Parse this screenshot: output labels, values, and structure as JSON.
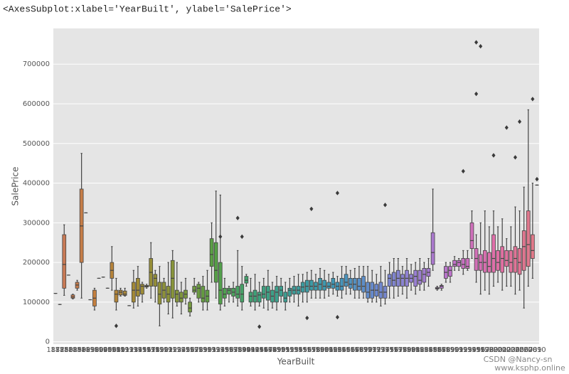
{
  "header": {
    "output": "<AxesSubplot:xlabel='YearBuilt', ylabel='SalePrice'>"
  },
  "watermark": {
    "line1": "CSDN @Nancy-sn",
    "line2": "www.ksphp.online"
  },
  "chart_data": {
    "type": "box",
    "xlabel": "YearBuilt",
    "ylabel": "SalePrice",
    "categories": [
      "1872",
      "1875",
      "1880",
      "1882",
      "1885",
      "1890",
      "1892",
      "1893",
      "1898",
      "1900",
      "1904",
      "1905",
      "1906",
      "1908",
      "1910",
      "1911",
      "1912",
      "1913",
      "1914",
      "1915",
      "1916",
      "1917",
      "1918",
      "1919",
      "1920",
      "1921",
      "1922",
      "1923",
      "1924",
      "1925",
      "1926",
      "1927",
      "1928",
      "1929",
      "1930",
      "1931",
      "1932",
      "1934",
      "1935",
      "1936",
      "1937",
      "1938",
      "1939",
      "1940",
      "1941",
      "1942",
      "1945",
      "1946",
      "1947",
      "1948",
      "1949",
      "1950",
      "1951",
      "1952",
      "1953",
      "1954",
      "1955",
      "1956",
      "1957",
      "1958",
      "1959",
      "1960",
      "1961",
      "1962",
      "1963",
      "1964",
      "1965",
      "1966",
      "1967",
      "1968",
      "1969",
      "1970",
      "1971",
      "1972",
      "1973",
      "1974",
      "1975",
      "1976",
      "1977",
      "1978",
      "1979",
      "1980",
      "1981",
      "1982",
      "1983",
      "1984",
      "1985",
      "1986",
      "1987",
      "1988",
      "1989",
      "1990",
      "1991",
      "1992",
      "1993",
      "1994",
      "1995",
      "1996",
      "1997",
      "1998",
      "1999",
      "2000",
      "2001",
      "2002",
      "2003",
      "2004",
      "2005",
      "2006",
      "2007",
      "2008",
      "2009",
      "2010"
    ],
    "boxes": [
      [
        122000,
        122000,
        122000,
        122000,
        122000
      ],
      [
        94000,
        94000,
        94000,
        94000,
        94000
      ],
      [
        117000,
        135000,
        195000,
        270000,
        295000
      ],
      [
        168000,
        168000,
        168000,
        168000,
        168000
      ],
      [
        108000,
        110000,
        113000,
        118000,
        120000
      ],
      [
        130000,
        135000,
        143000,
        150000,
        155000
      ],
      [
        110000,
        200000,
        292000,
        385000,
        475000
      ],
      [
        325000,
        325000,
        325000,
        325000,
        325000
      ],
      [
        106000,
        106000,
        106000,
        106000,
        106000
      ],
      [
        80000,
        90000,
        110000,
        130000,
        135000
      ],
      [
        160000,
        160000,
        160000,
        160000,
        160000
      ],
      [
        163000,
        163000,
        163000,
        163000,
        163000
      ],
      [
        135000,
        135000,
        135000,
        135000,
        135000
      ],
      [
        130000,
        160000,
        180000,
        200000,
        240000
      ],
      [
        80000,
        100000,
        120000,
        130000,
        160000
      ],
      [
        115000,
        118000,
        125000,
        130000,
        135000
      ],
      [
        115000,
        117000,
        120000,
        128000,
        135000
      ],
      [
        91000,
        91000,
        91000,
        91000,
        91000
      ],
      [
        85000,
        100000,
        130000,
        150000,
        180000
      ],
      [
        90000,
        115000,
        130000,
        160000,
        190000
      ],
      [
        100000,
        120000,
        140000,
        145000,
        150000
      ],
      [
        135000,
        138000,
        140000,
        142000,
        145000
      ],
      [
        110000,
        140000,
        175000,
        210000,
        250000
      ],
      [
        100000,
        140000,
        160000,
        170000,
        180000
      ],
      [
        40000,
        95000,
        120000,
        150000,
        190000
      ],
      [
        100000,
        110000,
        130000,
        150000,
        160000
      ],
      [
        70000,
        100000,
        120000,
        140000,
        200000
      ],
      [
        60000,
        110000,
        160000,
        205000,
        230000
      ],
      [
        90000,
        100000,
        120000,
        130000,
        200000
      ],
      [
        70000,
        100000,
        110000,
        125000,
        150000
      ],
      [
        95000,
        110000,
        120000,
        130000,
        160000
      ],
      [
        65000,
        75000,
        85000,
        100000,
        110000
      ],
      [
        120000,
        125000,
        130000,
        140000,
        160000
      ],
      [
        100000,
        110000,
        135000,
        145000,
        150000
      ],
      [
        80000,
        100000,
        110000,
        140000,
        165000
      ],
      [
        80000,
        100000,
        115000,
        130000,
        180000
      ],
      [
        150000,
        190000,
        220000,
        260000,
        300000
      ],
      [
        110000,
        150000,
        180000,
        250000,
        380000
      ],
      [
        80000,
        95000,
        130000,
        200000,
        370000
      ],
      [
        90000,
        110000,
        120000,
        135000,
        160000
      ],
      [
        100000,
        120000,
        130000,
        135000,
        140000
      ],
      [
        100000,
        115000,
        125000,
        135000,
        150000
      ],
      [
        90000,
        110000,
        120000,
        140000,
        230000
      ],
      [
        80000,
        100000,
        120000,
        145000,
        190000
      ],
      [
        140000,
        148000,
        155000,
        165000,
        170000
      ],
      [
        90000,
        100000,
        115000,
        125000,
        160000
      ],
      [
        80000,
        100000,
        115000,
        130000,
        170000
      ],
      [
        90000,
        100000,
        118000,
        125000,
        150000
      ],
      [
        85000,
        110000,
        120000,
        140000,
        160000
      ],
      [
        80000,
        105000,
        125000,
        140000,
        180000
      ],
      [
        85000,
        100000,
        115000,
        130000,
        150000
      ],
      [
        80000,
        100000,
        125000,
        140000,
        165000
      ],
      [
        100000,
        115000,
        130000,
        140000,
        160000
      ],
      [
        80000,
        100000,
        110000,
        125000,
        150000
      ],
      [
        100000,
        115000,
        130000,
        135000,
        160000
      ],
      [
        100000,
        120000,
        130000,
        140000,
        165000
      ],
      [
        90000,
        120000,
        130000,
        140000,
        170000
      ],
      [
        100000,
        125000,
        138000,
        150000,
        170000
      ],
      [
        100000,
        125000,
        140000,
        155000,
        175000
      ],
      [
        110000,
        130000,
        140000,
        155000,
        180000
      ],
      [
        110000,
        130000,
        140000,
        150000,
        170000
      ],
      [
        110000,
        130000,
        145000,
        160000,
        185000
      ],
      [
        110000,
        130000,
        140000,
        155000,
        180000
      ],
      [
        115000,
        135000,
        140000,
        150000,
        170000
      ],
      [
        120000,
        135000,
        145000,
        160000,
        175000
      ],
      [
        115000,
        130000,
        140000,
        150000,
        165000
      ],
      [
        110000,
        130000,
        140000,
        160000,
        190000
      ],
      [
        120000,
        140000,
        150000,
        170000,
        190000
      ],
      [
        120000,
        135000,
        145000,
        160000,
        180000
      ],
      [
        110000,
        130000,
        145000,
        160000,
        185000
      ],
      [
        110000,
        130000,
        140000,
        160000,
        190000
      ],
      [
        110000,
        125000,
        140000,
        165000,
        190000
      ],
      [
        100000,
        110000,
        125000,
        150000,
        190000
      ],
      [
        100000,
        110000,
        130000,
        150000,
        180000
      ],
      [
        100000,
        115000,
        130000,
        145000,
        170000
      ],
      [
        90000,
        110000,
        125000,
        150000,
        190000
      ],
      [
        95000,
        110000,
        125000,
        140000,
        180000
      ],
      [
        110000,
        140000,
        160000,
        170000,
        200000
      ],
      [
        110000,
        140000,
        155000,
        175000,
        210000
      ],
      [
        115000,
        140000,
        160000,
        180000,
        210000
      ],
      [
        120000,
        140000,
        160000,
        170000,
        190000
      ],
      [
        110000,
        140000,
        160000,
        180000,
        210000
      ],
      [
        130000,
        150000,
        160000,
        170000,
        195000
      ],
      [
        120000,
        140000,
        165000,
        180000,
        200000
      ],
      [
        130000,
        145000,
        155000,
        180000,
        210000
      ],
      [
        130000,
        150000,
        170000,
        185000,
        200000
      ],
      [
        140000,
        165000,
        175000,
        185000,
        210000
      ],
      [
        180000,
        195000,
        225000,
        275000,
        385000
      ],
      [
        130000,
        133000,
        135000,
        137000,
        140000
      ],
      [
        130000,
        135000,
        140000,
        142000,
        145000
      ],
      [
        150000,
        160000,
        175000,
        190000,
        200000
      ],
      [
        150000,
        165000,
        180000,
        190000,
        200000
      ],
      [
        180000,
        190000,
        195000,
        205000,
        215000
      ],
      [
        180000,
        190000,
        200000,
        205000,
        210000
      ],
      [
        170000,
        185000,
        195000,
        210000,
        230000
      ],
      [
        180000,
        185000,
        190000,
        210000,
        230000
      ],
      [
        210000,
        235000,
        255000,
        300000,
        330000
      ],
      [
        150000,
        180000,
        210000,
        235000,
        270000
      ],
      [
        120000,
        180000,
        200000,
        220000,
        300000
      ],
      [
        130000,
        175000,
        200000,
        230000,
        330000
      ],
      [
        120000,
        175000,
        190000,
        225000,
        290000
      ],
      [
        140000,
        175000,
        210000,
        270000,
        330000
      ],
      [
        150000,
        180000,
        200000,
        230000,
        290000
      ],
      [
        130000,
        175000,
        210000,
        240000,
        310000
      ],
      [
        140000,
        190000,
        205000,
        230000,
        260000
      ],
      [
        140000,
        175000,
        200000,
        230000,
        290000
      ],
      [
        120000,
        175000,
        210000,
        240000,
        340000
      ],
      [
        130000,
        170000,
        200000,
        235000,
        330000
      ],
      [
        85000,
        180000,
        240000,
        280000,
        390000
      ],
      [
        140000,
        190000,
        245000,
        330000,
        585000
      ],
      [
        160000,
        210000,
        230000,
        270000,
        400000
      ],
      [
        395000,
        395000,
        395000,
        395000,
        395000
      ]
    ],
    "outliers": [
      {
        "x": "1910",
        "y": 40000
      },
      {
        "x": "1935",
        "y": 265000
      },
      {
        "x": "1939",
        "y": 312000
      },
      {
        "x": "1940",
        "y": 265000
      },
      {
        "x": "1946",
        "y": 38000
      },
      {
        "x": "1957",
        "y": 60000
      },
      {
        "x": "1958",
        "y": 335000
      },
      {
        "x": "1964",
        "y": 375000
      },
      {
        "x": "1964",
        "y": 62000
      },
      {
        "x": "1975",
        "y": 345000
      },
      {
        "x": "1993",
        "y": 430000
      },
      {
        "x": "1996",
        "y": 755000
      },
      {
        "x": "1996",
        "y": 625000
      },
      {
        "x": "1997",
        "y": 745000
      },
      {
        "x": "2000",
        "y": 470000
      },
      {
        "x": "2003",
        "y": 540000
      },
      {
        "x": "2005",
        "y": 465000
      },
      {
        "x": "2006",
        "y": 555000
      },
      {
        "x": "2009",
        "y": 612000
      },
      {
        "x": "2010",
        "y": 410000
      }
    ],
    "palette": [
      "#c9785b",
      "#c47f3d",
      "#a18a36",
      "#86953a",
      "#55a046",
      "#3ea27a",
      "#3c9d9b",
      "#3f97b8",
      "#6c89d0",
      "#9a7fd2",
      "#c470c8",
      "#e06fa6",
      "#e07a86"
    ],
    "background": "#e5e5e5",
    "grid": true,
    "ylim": [
      -6000,
      790000
    ],
    "yticks": [
      0,
      100000,
      200000,
      300000,
      400000,
      500000,
      600000,
      700000
    ]
  }
}
